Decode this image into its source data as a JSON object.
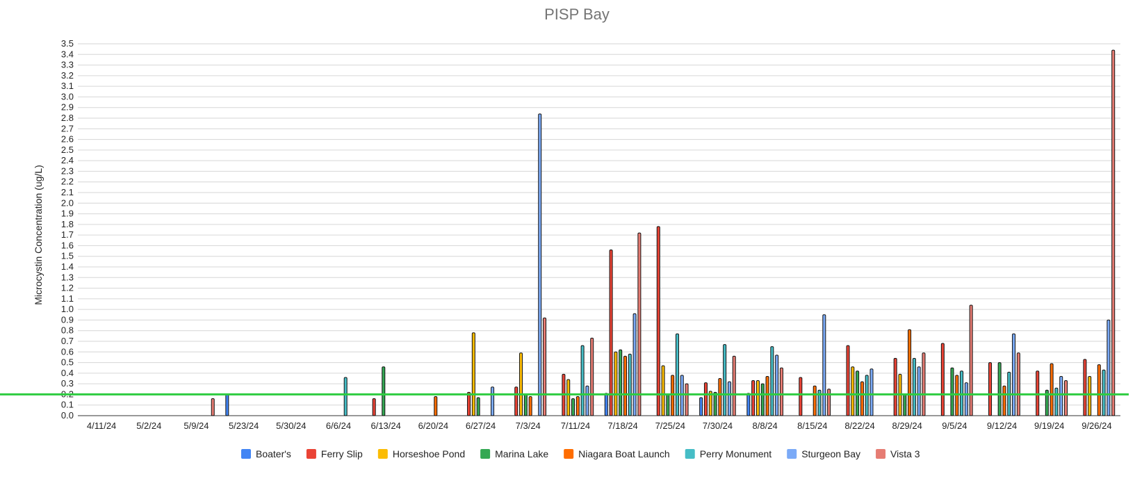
{
  "chart_data": {
    "type": "bar",
    "title": "PISP Bay",
    "xlabel": "",
    "ylabel": "Microcystin Concentration (ug/L)",
    "ylim": [
      0,
      3.5
    ],
    "yticks": [
      "0.0",
      "0.1",
      "0.2",
      "0.3",
      "0.4",
      "0.5",
      "0.6",
      "0.7",
      "0.8",
      "0.9",
      "1.0",
      "1.1",
      "1.2",
      "1.3",
      "1.4",
      "1.5",
      "1.6",
      "1.7",
      "1.8",
      "1.9",
      "2.0",
      "2.1",
      "2.2",
      "2.3",
      "2.4",
      "2.5",
      "2.6",
      "2.7",
      "2.8",
      "2.9",
      "3.0",
      "3.1",
      "3.2",
      "3.3",
      "3.4",
      "3.5"
    ],
    "grid": true,
    "legend_position": "bottom",
    "threshold": {
      "value": 0.2,
      "color": "#2ecc40"
    },
    "categories": [
      "4/11/24",
      "5/2/24",
      "5/9/24",
      "5/23/24",
      "5/30/24",
      "6/6/24",
      "6/13/24",
      "6/20/24",
      "6/27/24",
      "7/3/24",
      "7/11/24",
      "7/18/24",
      "7/25/24",
      "7/30/24",
      "8/8/24",
      "8/15/24",
      "8/22/24",
      "8/29/24",
      "9/5/24",
      "9/12/24",
      "9/19/24",
      "9/26/24"
    ],
    "series": [
      {
        "name": "Boater's",
        "color": "#4285f4",
        "values": [
          null,
          null,
          null,
          0.2,
          null,
          null,
          null,
          null,
          null,
          null,
          null,
          0.21,
          null,
          0.17,
          0.21,
          null,
          null,
          null,
          null,
          null,
          null,
          null
        ]
      },
      {
        "name": "Ferry Slip",
        "color": "#ea4335",
        "values": [
          null,
          null,
          null,
          null,
          null,
          null,
          0.16,
          null,
          0.22,
          0.27,
          0.39,
          1.56,
          1.78,
          0.31,
          0.33,
          0.36,
          0.66,
          0.54,
          0.68,
          0.5,
          0.42,
          0.53
        ]
      },
      {
        "name": "Horseshoe Pond",
        "color": "#fbbc04",
        "values": [
          null,
          null,
          null,
          null,
          null,
          null,
          null,
          null,
          0.78,
          0.59,
          0.34,
          0.6,
          0.47,
          0.23,
          0.33,
          null,
          0.46,
          0.39,
          null,
          null,
          null,
          0.37
        ]
      },
      {
        "name": "Marina Lake",
        "color": "#34a853",
        "values": [
          null,
          null,
          null,
          null,
          null,
          null,
          0.46,
          null,
          0.17,
          0.2,
          0.16,
          0.62,
          0.2,
          0.22,
          0.3,
          null,
          0.42,
          0.2,
          0.45,
          0.5,
          0.24,
          null
        ]
      },
      {
        "name": "Niagara Boat Launch",
        "color": "#ff6d01",
        "values": [
          null,
          null,
          null,
          null,
          null,
          null,
          null,
          0.18,
          null,
          0.18,
          0.18,
          0.56,
          0.38,
          0.35,
          0.37,
          0.28,
          0.32,
          0.81,
          0.38,
          0.28,
          0.49,
          0.48
        ]
      },
      {
        "name": "Perry Monument",
        "color": "#46bdc6",
        "values": [
          null,
          null,
          null,
          null,
          null,
          0.36,
          null,
          null,
          null,
          null,
          0.66,
          0.58,
          0.77,
          0.67,
          0.65,
          0.24,
          0.38,
          0.54,
          0.42,
          0.41,
          0.26,
          0.43
        ]
      },
      {
        "name": "Sturgeon Bay",
        "color": "#7baaf7",
        "values": [
          null,
          null,
          null,
          null,
          null,
          null,
          null,
          null,
          0.27,
          2.84,
          0.28,
          0.96,
          0.38,
          0.32,
          0.57,
          0.95,
          0.44,
          0.46,
          0.31,
          0.77,
          0.37,
          0.9
        ]
      },
      {
        "name": "Vista 3",
        "color": "#e67c73",
        "values": [
          null,
          null,
          0.16,
          null,
          null,
          null,
          null,
          null,
          null,
          0.92,
          0.73,
          1.72,
          0.3,
          0.56,
          0.45,
          0.25,
          null,
          0.59,
          1.04,
          0.59,
          0.33,
          3.44
        ]
      }
    ]
  }
}
